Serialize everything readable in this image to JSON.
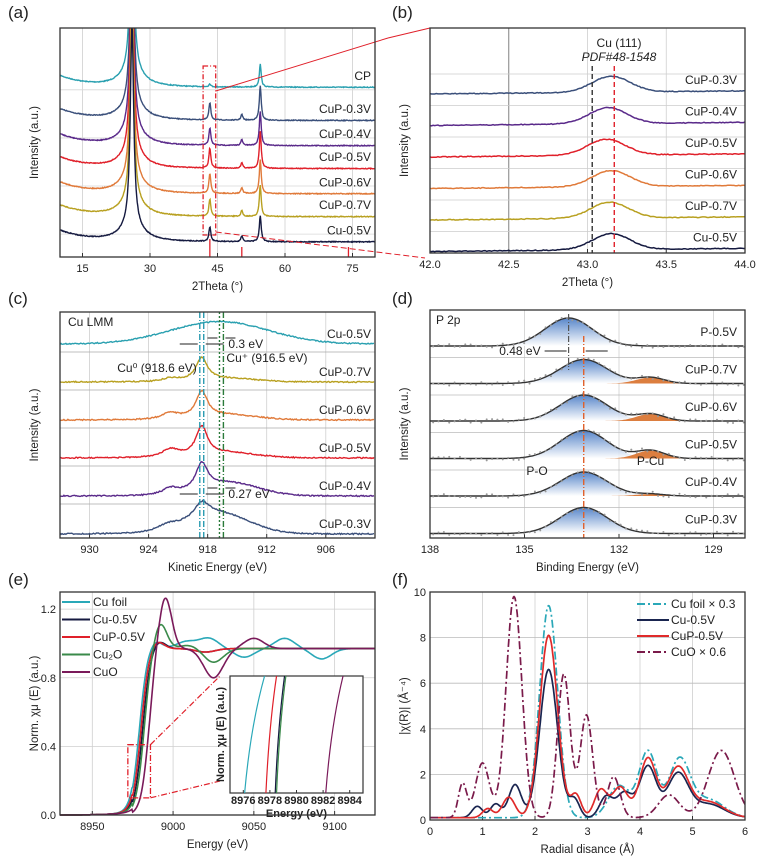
{
  "chart_data": [
    {
      "panel": "(a)",
      "type": "line",
      "xlabel": "2Theta (°)",
      "ylabel": "Intensity (a.u.)",
      "xlim": [
        10,
        80
      ],
      "xticks": [
        15,
        30,
        45,
        60,
        75
      ],
      "grid": true,
      "reference_ticks_x": [
        43.3,
        50.4,
        74.1
      ],
      "reference_color": "#e0202a",
      "zoom_box_x": [
        41.8,
        44.6
      ],
      "series": [
        {
          "name": "CP",
          "color": "#2aa0b0",
          "label_y": 0.235,
          "peaks": [
            [
              26.0,
              1.0
            ],
            [
              43.3,
              0.01
            ],
            [
              54.5,
              0.08
            ]
          ]
        },
        {
          "name": "CuP-0.3V",
          "color": "#3a4f7a",
          "label_y": 0.38,
          "peaks": [
            [
              26.0,
              1.0
            ],
            [
              43.3,
              0.06
            ],
            [
              50.4,
              0.02
            ],
            [
              54.5,
              0.12
            ]
          ]
        },
        {
          "name": "CuP-0.4V",
          "color": "#5a2a8a",
          "label_y": 0.49,
          "peaks": [
            [
              26.0,
              1.0
            ],
            [
              43.3,
              0.06
            ],
            [
              50.4,
              0.02
            ],
            [
              54.5,
              0.12
            ]
          ]
        },
        {
          "name": "CuP-0.5V",
          "color": "#e0202a",
          "label_y": 0.59,
          "peaks": [
            [
              26.0,
              1.0
            ],
            [
              43.3,
              0.07
            ],
            [
              50.4,
              0.02
            ],
            [
              54.5,
              0.13
            ]
          ]
        },
        {
          "name": "CuP-0.6V",
          "color": "#e07a3a",
          "label_y": 0.7,
          "peaks": [
            [
              26.0,
              1.0
            ],
            [
              43.3,
              0.07
            ],
            [
              50.4,
              0.02
            ],
            [
              54.5,
              0.12
            ]
          ]
        },
        {
          "name": "CuP-0.7V",
          "color": "#b8a020",
          "label_y": 0.8,
          "peaks": [
            [
              26.0,
              1.0
            ],
            [
              43.3,
              0.06
            ],
            [
              50.4,
              0.02
            ],
            [
              54.5,
              0.11
            ]
          ]
        },
        {
          "name": "Cu-0.5V",
          "color": "#151a40",
          "label_y": 0.91,
          "peaks": [
            [
              26.0,
              1.0
            ],
            [
              43.3,
              0.05
            ],
            [
              50.4,
              0.02
            ],
            [
              54.5,
              0.09
            ]
          ]
        }
      ]
    },
    {
      "panel": "(b)",
      "type": "line",
      "xlabel": "2Theta (°)",
      "ylabel": "Intensity (a.u.)",
      "xlim": [
        42.0,
        44.0
      ],
      "xticks": [
        "42.0",
        "42.5",
        "43.0",
        "43.5",
        "44.0"
      ],
      "grid": true,
      "annotation": {
        "line1": "Cu (111)",
        "line2": "PDF#48-1548",
        "color": "#e0202a"
      },
      "ref_lines": [
        {
          "x": 43.03,
          "color": "#333333",
          "style": "dashed"
        },
        {
          "x": 43.17,
          "color": "#e0202a",
          "style": "dashed"
        }
      ],
      "series": [
        {
          "name": "CuP-0.3V",
          "color": "#3a4f7a",
          "peak_x": 43.15,
          "amp": 0.09
        },
        {
          "name": "CuP-0.4V",
          "color": "#5a2a8a",
          "peak_x": 43.13,
          "amp": 0.09
        },
        {
          "name": "CuP-0.5V",
          "color": "#e0202a",
          "peak_x": 43.12,
          "amp": 0.08
        },
        {
          "name": "CuP-0.6V",
          "color": "#e07a3a",
          "peak_x": 43.15,
          "amp": 0.1
        },
        {
          "name": "CuP-0.7V",
          "color": "#b8a020",
          "peak_x": 43.14,
          "amp": 0.09
        },
        {
          "name": "Cu-0.5V",
          "color": "#151a40",
          "peak_x": 43.15,
          "amp": 0.07
        }
      ]
    },
    {
      "panel": "(c)",
      "type": "line",
      "title": "Cu LMM",
      "xlabel": "Kinetic Energy (eV)",
      "ylabel": "Intensity (a.u.)",
      "xlim": [
        933,
        901
      ],
      "xticks": [
        930,
        924,
        918,
        912,
        906
      ],
      "grid": true,
      "annotations": {
        "cu0": "Cu⁰ (918.6 eV)",
        "cuplus": "Cu⁺ (916.5 eV)",
        "shift_top": "0.3 eV",
        "shift_bottom": "0.27 eV",
        "cu0_color": "#2a9ab0",
        "cuplus_color": "#2a7a3a"
      },
      "ref_lines": [
        918.6,
        916.5
      ],
      "series": [
        {
          "name": "Cu-0.5V",
          "color": "#2aa0b0",
          "peaks": [
            [
              916.8,
              0.14,
              5.0
            ]
          ]
        },
        {
          "name": "CuP-0.7V",
          "color": "#b8a020",
          "peaks": [
            [
              918.6,
              0.14,
              0.7
            ],
            [
              921.8,
              0.02,
              1.0
            ],
            [
              916.0,
              0.02,
              3.0
            ]
          ]
        },
        {
          "name": "CuP-0.6V",
          "color": "#e07a3a",
          "peaks": [
            [
              918.6,
              0.16,
              0.7
            ],
            [
              921.8,
              0.04,
              1.0
            ],
            [
              916.0,
              0.03,
              3.0
            ]
          ]
        },
        {
          "name": "CuP-0.5V",
          "color": "#e0202a",
          "peaks": [
            [
              918.6,
              0.18,
              0.7
            ],
            [
              921.8,
              0.05,
              1.0
            ],
            [
              916.0,
              0.03,
              3.0
            ]
          ]
        },
        {
          "name": "CuP-0.4V",
          "color": "#5a2a8a",
          "peaks": [
            [
              918.6,
              0.16,
              0.7
            ],
            [
              921.8,
              0.04,
              1.0
            ],
            [
              915.8,
              0.08,
              3.0
            ]
          ]
        },
        {
          "name": "CuP-0.3V",
          "color": "#3a4f7a",
          "peaks": [
            [
              918.6,
              0.1,
              1.0
            ],
            [
              922.0,
              0.04,
              1.5
            ],
            [
              916.7,
              0.12,
              3.0
            ]
          ]
        }
      ]
    },
    {
      "panel": "(d)",
      "type": "line",
      "title": "P 2p",
      "xlabel": "Binding Energy (eV)",
      "ylabel": "Intensity (a.u.)",
      "xlim": [
        138,
        128
      ],
      "xticks": [
        138,
        135,
        132,
        129
      ],
      "grid": true,
      "annotations": {
        "shift": "0.48 eV",
        "po": "P-O",
        "pcu": "P-Cu",
        "po_color": "#3a70c0",
        "pcu_color": "#d0602a"
      },
      "ref_lines": [
        {
          "x": 133.6,
          "color": "#555555"
        },
        {
          "x": 133.12,
          "color": "#e0602a"
        }
      ],
      "series": [
        {
          "name": "P-0.5V",
          "po_center": 133.6,
          "po_amp": 0.14,
          "pcu_amp": 0
        },
        {
          "name": "CuP-0.7V",
          "po_center": 133.12,
          "po_amp": 0.12,
          "pcu_amp": 0.03
        },
        {
          "name": "CuP-0.6V",
          "po_center": 133.12,
          "po_amp": 0.13,
          "pcu_amp": 0.035
        },
        {
          "name": "CuP-0.5V",
          "po_center": 133.12,
          "po_amp": 0.14,
          "pcu_amp": 0.04
        },
        {
          "name": "CuP-0.4V",
          "po_center": 133.12,
          "po_amp": 0.12,
          "pcu_amp": 0.01
        },
        {
          "name": "CuP-0.3V",
          "po_center": 133.12,
          "po_amp": 0.13,
          "pcu_amp": 0
        }
      ]
    },
    {
      "panel": "(e)",
      "type": "line",
      "xlabel": "Energy (eV)",
      "ylabel": "Norm. χμ (E) (a.u.)",
      "xlim": [
        8930,
        9125
      ],
      "ylim": [
        0,
        1.3
      ],
      "xticks": [
        8950,
        9000,
        9050,
        9100
      ],
      "yticks": [
        "0.0",
        "0.4",
        "0.8",
        "1.2"
      ],
      "grid": true,
      "legend": "top-left",
      "series": [
        {
          "name": "Cu foil",
          "color": "#2aa8b8",
          "edge": 8979,
          "wl": 1.0,
          "osc": [
            [
              9008,
              0.04
            ],
            [
              9022,
              0.06
            ],
            [
              9044,
              -0.05
            ],
            [
              9069,
              0.06
            ],
            [
              9092,
              -0.06
            ]
          ]
        },
        {
          "name": "Cu-0.5V",
          "color": "#151a40",
          "edge": 8981,
          "wl": 1.0,
          "osc": [
            [
              9003,
              0.0
            ],
            [
              9020,
              -0.02
            ]
          ]
        },
        {
          "name": "CuP-0.5V",
          "color": "#e0202a",
          "edge": 8980,
          "wl": 1.0,
          "osc": [
            [
              9020,
              -0.02
            ]
          ]
        },
        {
          "name": "Cu₂O",
          "color": "#3a8a4a",
          "edge": 8982,
          "wl": 1.11,
          "osc": [
            [
              9010,
              0.02
            ],
            [
              9025,
              -0.08
            ]
          ]
        },
        {
          "name": "CuO",
          "color": "#7a1a5a",
          "edge": 8985,
          "wl": 1.27,
          "osc": [
            [
              9025,
              -0.17
            ],
            [
              9050,
              0.06
            ]
          ]
        }
      ],
      "inset": {
        "xlabel": "Energy (eV)",
        "ylabel": "Norm. χμ (E) (a.u.)",
        "xlim": [
          8975,
          8985
        ],
        "xticks": [
          8976,
          8978,
          8980,
          8982,
          8984
        ],
        "lines": [
          {
            "name": "Cu foil",
            "x0": 8976.1,
            "x1": 8977.6,
            "color": "#2aa8b8"
          },
          {
            "name": "CuP-0.5V",
            "x0": 8977.7,
            "x1": 8978.5,
            "color": "#e0202a"
          },
          {
            "name": "Cu-0.5V",
            "x0": 8978.4,
            "x1": 8979.1,
            "color": "#151a40"
          },
          {
            "name": "Cu₂O",
            "x0": 8978.5,
            "x1": 8979.2,
            "color": "#3a8a4a"
          },
          {
            "name": "CuO",
            "x0": 8982.2,
            "x1": 8983.5,
            "color": "#7a1a5a"
          }
        ]
      }
    },
    {
      "panel": "(f)",
      "type": "line",
      "xlabel": "Radial  disance (Å)",
      "ylabel": "|χ(R)| (Å⁻⁴)",
      "xlim": [
        0,
        6
      ],
      "ylim": [
        0,
        10
      ],
      "xticks": [
        0,
        1,
        2,
        3,
        4,
        5,
        6
      ],
      "yticks": [
        0,
        2,
        4,
        6,
        8,
        10
      ],
      "grid": true,
      "legend": "top-right",
      "series": [
        {
          "name": "Cu foil × 0.3",
          "color": "#2aa8b8",
          "dash": "dashdot",
          "peaks": [
            [
              2.26,
              9.3,
              0.17
            ],
            [
              3.6,
              1.4,
              0.2
            ],
            [
              4.15,
              2.9,
              0.17
            ],
            [
              4.75,
              2.5,
              0.2
            ],
            [
              5.3,
              0.8,
              0.3
            ]
          ]
        },
        {
          "name": "Cu-0.5V",
          "color": "#1a2550",
          "dash": "solid",
          "peaks": [
            [
              0.9,
              0.5,
              0.1
            ],
            [
              1.25,
              0.6,
              0.1
            ],
            [
              1.62,
              1.45,
              0.12
            ],
            [
              2.26,
              6.5,
              0.17
            ],
            [
              2.75,
              0.8,
              0.1
            ],
            [
              3.35,
              0.9,
              0.12
            ],
            [
              3.7,
              1.1,
              0.15
            ],
            [
              4.15,
              2.25,
              0.16
            ],
            [
              4.72,
              1.9,
              0.2
            ],
            [
              5.3,
              0.6,
              0.3
            ]
          ]
        },
        {
          "name": "CuP-0.5V",
          "color": "#e02a2a",
          "dash": "solid",
          "peaks": [
            [
              1.1,
              0.4,
              0.1
            ],
            [
              1.5,
              0.9,
              0.12
            ],
            [
              2.26,
              8.0,
              0.17
            ],
            [
              2.78,
              1.0,
              0.1
            ],
            [
              3.25,
              1.2,
              0.12
            ],
            [
              3.62,
              1.35,
              0.15
            ],
            [
              4.15,
              2.6,
              0.16
            ],
            [
              4.72,
              2.15,
              0.2
            ],
            [
              5.3,
              0.7,
              0.3
            ]
          ]
        },
        {
          "name": "CuO × 0.6",
          "color": "#7a1a4a",
          "dash": "dashdot",
          "peaks": [
            [
              0.62,
              1.5,
              0.08
            ],
            [
              1.0,
              2.4,
              0.13
            ],
            [
              1.6,
              9.7,
              0.15
            ],
            [
              2.55,
              6.3,
              0.12
            ],
            [
              2.98,
              4.5,
              0.12
            ],
            [
              3.5,
              1.8,
              0.12
            ],
            [
              4.55,
              1.0,
              0.2
            ],
            [
              5.55,
              2.95,
              0.25
            ]
          ]
        }
      ]
    }
  ],
  "panel_labels": [
    "(a)",
    "(b)",
    "(c)",
    "(d)",
    "(e)",
    "(f)"
  ]
}
